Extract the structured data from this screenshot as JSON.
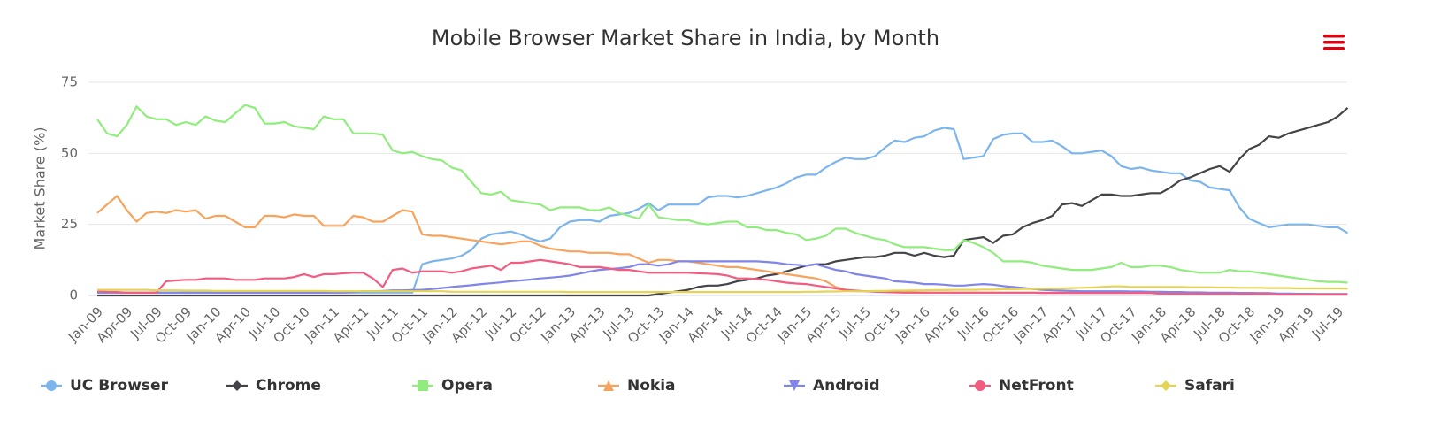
{
  "chart_data": {
    "type": "line",
    "title": "Mobile Browser Market Share in India, by Month",
    "y_label": "Market Share (%)",
    "ylim": [
      0,
      75
    ],
    "yticks": [
      0,
      25,
      50,
      75
    ],
    "grid": true,
    "legend": "bottom",
    "categories": [
      "Jan-09",
      null,
      null,
      "Apr-09",
      null,
      null,
      "Jul-09",
      null,
      null,
      "Oct-09",
      null,
      null,
      "Jan-10",
      null,
      null,
      "Apr-10",
      null,
      null,
      "Jul-10",
      null,
      null,
      "Oct-10",
      null,
      null,
      "Jan-11",
      null,
      null,
      "Apr-11",
      null,
      null,
      "Jul-11",
      null,
      null,
      "Oct-11",
      null,
      null,
      "Jan-12",
      null,
      null,
      "Apr-12",
      null,
      null,
      "Jul-12",
      null,
      null,
      "Oct-12",
      null,
      null,
      "Jan-13",
      null,
      null,
      "Apr-13",
      null,
      null,
      "Jul-13",
      null,
      null,
      "Oct-13",
      null,
      null,
      "Jan-14",
      null,
      null,
      "Apr-14",
      null,
      null,
      "Jul-14",
      null,
      null,
      "Oct-14",
      null,
      null,
      "Jan-15",
      null,
      null,
      "Apr-15",
      null,
      null,
      "Jul-15",
      null,
      null,
      "Oct-15",
      null,
      null,
      "Jan-16",
      null,
      null,
      "Apr-16",
      null,
      null,
      "Jul-16",
      null,
      null,
      "Oct-16",
      null,
      null,
      "Jan-17",
      null,
      null,
      "Apr-17",
      null,
      null,
      "Jul-17",
      null,
      null,
      "Oct-17",
      null,
      null,
      "Jan-18",
      null,
      null,
      "Apr-18",
      null,
      null,
      "Jul-18",
      null,
      null,
      "Oct-18",
      null,
      null,
      "Jan-19",
      null,
      null,
      "Apr-19",
      null,
      null,
      "Jul-19",
      null
    ],
    "series": [
      {
        "name": "UC Browser",
        "color": "#7cb5ec",
        "marker": "circle",
        "values": [
          1,
          1,
          1,
          1,
          1,
          1,
          1,
          1,
          1,
          1,
          1,
          1,
          1,
          1,
          1,
          1,
          1,
          1,
          1,
          1,
          1,
          1,
          1,
          1,
          1,
          1,
          1,
          1,
          1,
          1,
          1,
          1,
          1,
          11,
          12,
          12.5,
          13,
          14,
          16,
          20,
          21.5,
          22,
          22.5,
          21.5,
          20,
          19,
          20,
          24,
          26,
          26.5,
          26.5,
          26,
          28,
          28.5,
          29,
          30.5,
          32.5,
          30,
          32,
          32,
          32,
          32,
          34.5,
          35,
          35,
          34.5,
          35,
          36,
          37,
          38,
          39.5,
          41.5,
          42.5,
          42.5,
          45,
          47,
          48.5,
          48,
          48,
          49,
          52,
          54.5,
          54,
          55.5,
          56,
          58,
          59,
          58.5,
          48,
          48.5,
          49,
          55,
          56.5,
          57,
          57,
          54,
          54,
          54.5,
          52.5,
          50,
          50,
          50.5,
          51,
          49,
          45.5,
          44.5,
          45,
          44,
          43.5,
          43,
          43,
          40.5,
          40,
          38,
          37.5,
          37,
          31,
          27,
          25.5,
          24,
          24.5,
          25,
          25,
          25,
          24.5,
          24,
          24,
          22
        ]
      },
      {
        "name": "Chrome",
        "color": "#434348",
        "marker": "diamond",
        "values": [
          0,
          0,
          0,
          0,
          0,
          0,
          0,
          0,
          0,
          0,
          0,
          0,
          0,
          0,
          0,
          0,
          0,
          0,
          0,
          0,
          0,
          0,
          0,
          0,
          0,
          0,
          0,
          0,
          0,
          0,
          0,
          0,
          0,
          0,
          0,
          0,
          0,
          0,
          0,
          0,
          0,
          0,
          0,
          0,
          0,
          0,
          0,
          0,
          0,
          0,
          0,
          0,
          0,
          0,
          0,
          0,
          0,
          0.5,
          1,
          1.5,
          2,
          3,
          3.5,
          3.5,
          4,
          5,
          5.5,
          6,
          7,
          7.5,
          8.5,
          9.5,
          10.5,
          11,
          11,
          12,
          12.5,
          13,
          13.5,
          13.5,
          14,
          15,
          15,
          14,
          15,
          14,
          13.5,
          14,
          19.5,
          20,
          20.5,
          18.5,
          21,
          21.5,
          24,
          25.5,
          26.5,
          28,
          32,
          32.5,
          31.5,
          33.5,
          35.5,
          35.5,
          35,
          35,
          35.5,
          36,
          36,
          38,
          40.5,
          41.5,
          43,
          44.5,
          45.5,
          43.5,
          48,
          51.5,
          53,
          56,
          55.5,
          57,
          58,
          59,
          60,
          61,
          63,
          66
        ]
      },
      {
        "name": "Opera",
        "color": "#90ed7d",
        "marker": "square",
        "values": [
          62,
          57,
          56,
          60,
          66.5,
          63,
          62,
          62,
          60,
          61,
          60,
          63,
          61.5,
          61,
          64,
          67,
          66,
          60.5,
          60.5,
          61,
          59.5,
          59,
          58.5,
          63,
          62,
          62,
          57,
          57,
          57,
          56.5,
          51,
          50,
          50.5,
          49,
          48,
          47.5,
          45,
          44,
          40,
          36,
          35.5,
          36.5,
          33.5,
          33,
          32.5,
          32,
          30,
          31,
          31,
          31,
          30,
          30,
          31,
          29,
          28,
          27,
          32,
          27.5,
          27,
          26.5,
          26.5,
          25.5,
          25,
          25.5,
          26,
          26,
          24,
          24,
          23,
          23,
          22,
          21.5,
          19.5,
          20,
          21,
          23.5,
          23.5,
          22,
          21,
          20,
          19.5,
          18,
          17,
          17,
          17,
          16.5,
          16,
          16,
          19.5,
          18.5,
          17,
          15,
          12,
          12,
          12,
          11.5,
          10.5,
          10,
          9.5,
          9,
          9,
          9,
          9.5,
          10,
          11.5,
          10,
          10,
          10.5,
          10.5,
          10,
          9,
          8.5,
          8,
          8,
          8,
          9,
          8.5,
          8.5,
          8,
          7.5,
          7,
          6.5,
          6,
          5.5,
          5,
          4.8,
          4.8,
          4.5
        ]
      },
      {
        "name": "Nokia",
        "color": "#f7a35c",
        "marker": "triangle",
        "values": [
          29,
          32,
          35,
          30,
          26,
          29,
          29.5,
          29,
          30,
          29.5,
          30,
          27,
          28,
          28,
          26,
          24,
          24,
          28,
          28,
          27.5,
          28.5,
          28,
          28,
          24.5,
          24.5,
          24.5,
          28,
          27.5,
          26,
          26,
          28,
          30,
          29.5,
          21.5,
          21,
          21,
          20.5,
          20,
          19.5,
          19,
          18.5,
          18,
          18.5,
          19,
          19,
          17.5,
          16.5,
          16,
          15.5,
          15.5,
          15,
          15,
          15,
          14.5,
          14.5,
          13,
          11.5,
          12.5,
          12.5,
          12,
          12,
          11.5,
          11,
          10.5,
          10,
          10,
          9.5,
          9,
          8.5,
          8,
          7.5,
          7,
          6.5,
          6,
          5,
          3,
          2,
          1.5,
          1.5,
          1.5,
          1.3,
          1.2,
          1.2,
          1.1,
          1,
          1,
          1,
          1,
          1,
          1,
          1,
          1,
          1,
          1,
          1,
          1,
          1,
          1,
          1,
          1,
          1,
          1,
          1,
          1,
          1,
          1,
          1,
          1,
          0.8,
          0.8,
          0.8,
          0.8,
          0.8,
          0.8,
          0.8,
          0.8,
          0.8,
          0.8,
          0.8,
          0.8,
          0.5,
          0.5,
          0.5,
          0.5,
          0.5,
          0.5,
          0.5,
          0.5
        ]
      },
      {
        "name": "Android",
        "color": "#8085e9",
        "marker": "triangle-down",
        "values": [
          1,
          1,
          1,
          1,
          1,
          1,
          1,
          1,
          1,
          1,
          1,
          1,
          1,
          1,
          1,
          1,
          1,
          1,
          1,
          1,
          1,
          1,
          1,
          1,
          1,
          1,
          1.2,
          1.5,
          1.5,
          1.6,
          1.8,
          1.8,
          1.9,
          2,
          2.3,
          2.6,
          3,
          3.3,
          3.6,
          4,
          4.3,
          4.6,
          5,
          5.3,
          5.6,
          6,
          6.3,
          6.6,
          7,
          7.7,
          8.4,
          9,
          9.3,
          9.6,
          10,
          11,
          11,
          10.5,
          11,
          12,
          12,
          12,
          12,
          12,
          12,
          12,
          12,
          12,
          11.8,
          11.5,
          11,
          10.8,
          10.5,
          11,
          10,
          9,
          8.5,
          7.5,
          7,
          6.5,
          6,
          5,
          4.8,
          4.5,
          4,
          4,
          3.8,
          3.5,
          3.5,
          3.8,
          4,
          3.8,
          3.3,
          3,
          2.7,
          2.3,
          2,
          1.8,
          1.7,
          1.6,
          1.5,
          1.5,
          1.5,
          1.5,
          1.5,
          1.4,
          1.4,
          1.3,
          1.3,
          1.2,
          1.2,
          1.1,
          1.1,
          1,
          1,
          1,
          0.9,
          0.9,
          0.8,
          0.8,
          0.7,
          0.7,
          0.6,
          0.6,
          0.5,
          0.5,
          0.5,
          0.5
        ]
      },
      {
        "name": "NetFront",
        "color": "#f15c80",
        "marker": "circle",
        "values": [
          1.5,
          1.3,
          1.2,
          1,
          1,
          1,
          1,
          5,
          5.3,
          5.5,
          5.5,
          6,
          6,
          6,
          5.5,
          5.5,
          5.5,
          6,
          6,
          6,
          6.5,
          7.5,
          6.5,
          7.5,
          7.5,
          7.8,
          8,
          8,
          6,
          3,
          9,
          9.5,
          8,
          8.5,
          8.5,
          8.5,
          8,
          8.5,
          9.5,
          10,
          10.5,
          9,
          11.5,
          11.5,
          12,
          12.5,
          12,
          11.5,
          11,
          10,
          10,
          10,
          9.5,
          9,
          9,
          8.5,
          8,
          8,
          8,
          8,
          8,
          7.8,
          7.7,
          7.5,
          7,
          6,
          6,
          5.8,
          5.5,
          5,
          4.5,
          4.2,
          4,
          3.5,
          3,
          2.5,
          2,
          1.7,
          1.5,
          1.3,
          1.2,
          1.1,
          1,
          1,
          1,
          1,
          1,
          1,
          1,
          1,
          1,
          1,
          1,
          1,
          1,
          1,
          0.9,
          0.9,
          0.9,
          0.9,
          0.9,
          0.9,
          0.9,
          0.9,
          0.9,
          0.9,
          0.9,
          0.9,
          0.6,
          0.6,
          0.6,
          0.6,
          0.6,
          0.6,
          0.6,
          0.6,
          0.6,
          0.6,
          0.6,
          0.6,
          0.3,
          0.3,
          0.3,
          0.3,
          0.3,
          0.3,
          0.3,
          0.3
        ]
      },
      {
        "name": "Safari",
        "color": "#e4d354",
        "marker": "diamond",
        "values": [
          2,
          2,
          2,
          2,
          2,
          2,
          1.8,
          1.8,
          1.8,
          1.7,
          1.7,
          1.7,
          1.6,
          1.6,
          1.6,
          1.6,
          1.6,
          1.6,
          1.6,
          1.6,
          1.6,
          1.6,
          1.6,
          1.6,
          1.5,
          1.5,
          1.5,
          1.5,
          1.5,
          1.5,
          1.5,
          1.5,
          1.5,
          1.5,
          1.5,
          1.5,
          1.3,
          1.3,
          1.3,
          1.3,
          1.3,
          1.3,
          1.3,
          1.3,
          1.3,
          1.3,
          1.3,
          1.3,
          1.2,
          1.2,
          1.2,
          1.2,
          1.2,
          1.2,
          1.2,
          1.2,
          1.2,
          1.2,
          1.2,
          1.2,
          1.2,
          1.2,
          1.2,
          1.2,
          1.2,
          1.2,
          1.2,
          1.2,
          1.2,
          1.2,
          1.2,
          1.2,
          1.3,
          1.3,
          1.4,
          1.4,
          1.5,
          1.5,
          1.5,
          1.6,
          1.6,
          1.7,
          1.7,
          1.8,
          1.8,
          1.9,
          1.9,
          2,
          2,
          2,
          2.1,
          2.1,
          2.2,
          2.2,
          2.3,
          2.3,
          2.4,
          2.5,
          2.5,
          2.6,
          2.7,
          2.8,
          3,
          3.2,
          3.2,
          3,
          3,
          3,
          3,
          3,
          3,
          2.9,
          2.9,
          2.9,
          2.8,
          2.8,
          2.7,
          2.7,
          2.7,
          2.6,
          2.6,
          2.6,
          2.5,
          2.5,
          2.5,
          2.5,
          2.5,
          2.4
        ]
      }
    ]
  }
}
